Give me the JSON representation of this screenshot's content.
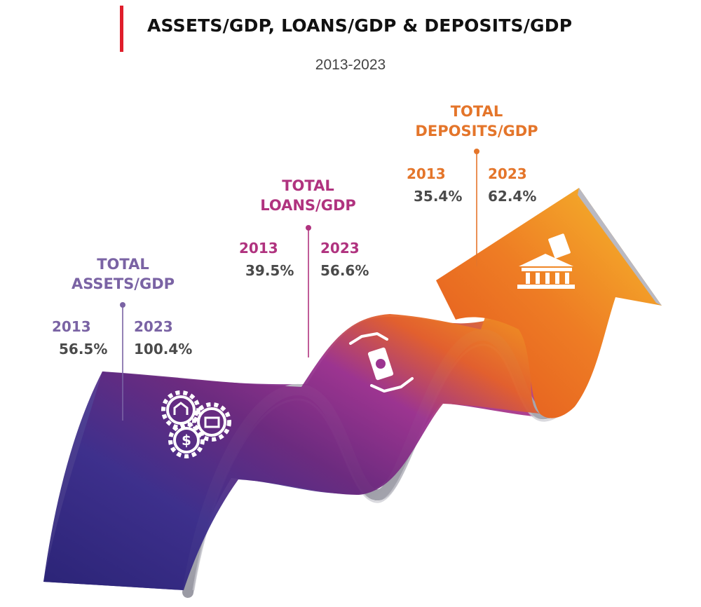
{
  "title": "ASSETS/GDP, LOANS/GDP &  DEPOSITS/GDP",
  "subtitle": "2013-2023",
  "colors": {
    "accent": "#e01e2b",
    "assets": "#7a63a4",
    "loans": "#b0337f",
    "deposits": "#e4752a",
    "value_text": "#4a4a4a"
  },
  "metrics": [
    {
      "heading_line1": "TOTAL",
      "heading_line2": "ASSETS/GDP",
      "year_start": "2013",
      "value_start": "56.5%",
      "year_end": "2023",
      "value_end": "100.4%",
      "icon": "gears-finance-icon"
    },
    {
      "heading_line1": "TOTAL",
      "heading_line2": "LOANS/GDP",
      "year_start": "2013",
      "value_start": "39.5%",
      "year_end": "2023",
      "value_end": "56.6%",
      "icon": "hands-money-icon"
    },
    {
      "heading_line1": "TOTAL",
      "heading_line2": "DEPOSITS/GDP",
      "year_start": "2013",
      "value_start": "35.4%",
      "year_end": "2023",
      "value_end": "62.4%",
      "icon": "bank-icon"
    }
  ]
}
